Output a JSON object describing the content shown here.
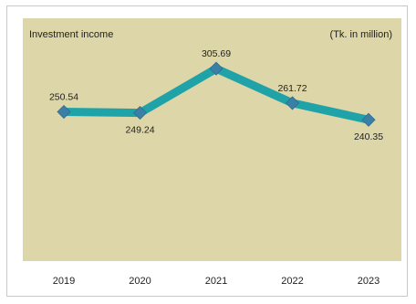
{
  "chart_data": {
    "type": "line",
    "title": "Investment income",
    "unit_label": "(Tk. in million)",
    "categories": [
      "2019",
      "2020",
      "2021",
      "2022",
      "2023"
    ],
    "series": [
      {
        "values": [
          250.54,
          249.24,
          305.69,
          261.72,
          240.35
        ]
      }
    ],
    "value_labels": [
      "250.54",
      "249.24",
      "305.69",
      "261.72",
      "240.35"
    ],
    "label_position": [
      "above",
      "below",
      "above",
      "above",
      "below"
    ],
    "ylim": [
      60,
      370
    ],
    "grid": false,
    "legend": "none",
    "colors": {
      "plot_background": "#ddd6a8",
      "line": "#1fa3a8",
      "marker": "#3c7fa6",
      "text": "#222222"
    }
  }
}
